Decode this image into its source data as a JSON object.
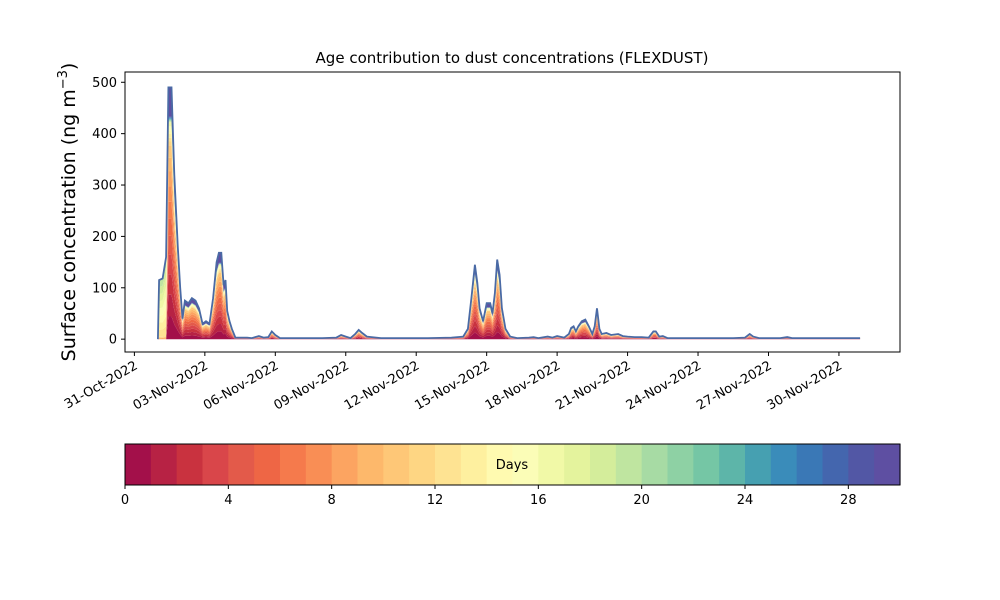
{
  "chart_data": {
    "type": "area",
    "title": "Age contribution to dust concentrations (FLEXDUST)",
    "ylabel_main": "Surface concentration (ng m",
    "ylabel_sup": "−3",
    "ylabel_close": ")",
    "xlabel": "",
    "x_start_label": "31-Oct-2022",
    "xlim_days": [
      -0.4,
      32.6
    ],
    "ylim": [
      -25,
      520
    ],
    "y_ticks": [
      0,
      100,
      200,
      300,
      400,
      500
    ],
    "x_ticks": [
      {
        "day": 0,
        "label": "31-Oct-2022"
      },
      {
        "day": 3,
        "label": "03-Nov-2022"
      },
      {
        "day": 6,
        "label": "06-Nov-2022"
      },
      {
        "day": 9,
        "label": "09-Nov-2022"
      },
      {
        "day": 12,
        "label": "12-Nov-2022"
      },
      {
        "day": 15,
        "label": "15-Nov-2022"
      },
      {
        "day": 18,
        "label": "18-Nov-2022"
      },
      {
        "day": 21,
        "label": "21-Nov-2022"
      },
      {
        "day": 24,
        "label": "24-Nov-2022"
      },
      {
        "day": 27,
        "label": "27-Nov-2022"
      },
      {
        "day": 30,
        "label": "30-Nov-2022"
      }
    ],
    "total_line_color": "#4a6aa5",
    "series_total": [
      [
        1.0,
        0
      ],
      [
        1.05,
        115
      ],
      [
        1.2,
        118
      ],
      [
        1.35,
        160
      ],
      [
        1.45,
        490
      ],
      [
        1.58,
        490
      ],
      [
        1.7,
        320
      ],
      [
        1.85,
        180
      ],
      [
        1.95,
        100
      ],
      [
        2.05,
        40
      ],
      [
        2.15,
        75
      ],
      [
        2.3,
        70
      ],
      [
        2.45,
        80
      ],
      [
        2.6,
        75
      ],
      [
        2.75,
        60
      ],
      [
        2.9,
        30
      ],
      [
        3.05,
        35
      ],
      [
        3.2,
        30
      ],
      [
        3.35,
        80
      ],
      [
        3.5,
        150
      ],
      [
        3.6,
        168
      ],
      [
        3.7,
        168
      ],
      [
        3.8,
        105
      ],
      [
        3.88,
        115
      ],
      [
        3.95,
        55
      ],
      [
        4.05,
        35
      ],
      [
        4.15,
        20
      ],
      [
        4.3,
        3
      ],
      [
        4.8,
        3
      ],
      [
        5.0,
        2
      ],
      [
        5.3,
        6
      ],
      [
        5.5,
        3
      ],
      [
        5.7,
        4
      ],
      [
        5.85,
        15
      ],
      [
        6.0,
        8
      ],
      [
        6.2,
        2
      ],
      [
        7.0,
        2
      ],
      [
        7.5,
        2
      ],
      [
        8.0,
        2
      ],
      [
        8.6,
        3
      ],
      [
        8.8,
        8
      ],
      [
        9.0,
        5
      ],
      [
        9.2,
        2
      ],
      [
        9.4,
        10
      ],
      [
        9.55,
        18
      ],
      [
        9.7,
        12
      ],
      [
        9.9,
        5
      ],
      [
        10.5,
        2
      ],
      [
        11.5,
        2
      ],
      [
        12.5,
        2
      ],
      [
        13.5,
        3
      ],
      [
        14.0,
        5
      ],
      [
        14.2,
        20
      ],
      [
        14.35,
        80
      ],
      [
        14.5,
        145
      ],
      [
        14.6,
        110
      ],
      [
        14.7,
        60
      ],
      [
        14.85,
        35
      ],
      [
        15.0,
        70
      ],
      [
        15.15,
        70
      ],
      [
        15.25,
        50
      ],
      [
        15.35,
        90
      ],
      [
        15.45,
        155
      ],
      [
        15.55,
        125
      ],
      [
        15.65,
        60
      ],
      [
        15.8,
        20
      ],
      [
        16.0,
        5
      ],
      [
        16.3,
        2
      ],
      [
        16.8,
        3
      ],
      [
        17.0,
        4
      ],
      [
        17.2,
        2
      ],
      [
        17.6,
        5
      ],
      [
        17.8,
        3
      ],
      [
        18.0,
        6
      ],
      [
        18.3,
        3
      ],
      [
        18.5,
        10
      ],
      [
        18.6,
        22
      ],
      [
        18.7,
        25
      ],
      [
        18.8,
        15
      ],
      [
        18.9,
        25
      ],
      [
        19.05,
        35
      ],
      [
        19.2,
        38
      ],
      [
        19.35,
        25
      ],
      [
        19.5,
        10
      ],
      [
        19.6,
        25
      ],
      [
        19.7,
        60
      ],
      [
        19.8,
        20
      ],
      [
        19.9,
        10
      ],
      [
        20.1,
        12
      ],
      [
        20.3,
        8
      ],
      [
        20.6,
        10
      ],
      [
        20.8,
        6
      ],
      [
        21.0,
        5
      ],
      [
        21.3,
        4
      ],
      [
        21.6,
        4
      ],
      [
        21.9,
        3
      ],
      [
        22.1,
        15
      ],
      [
        22.2,
        15
      ],
      [
        22.35,
        5
      ],
      [
        22.5,
        6
      ],
      [
        22.7,
        2
      ],
      [
        23.5,
        2
      ],
      [
        24.5,
        2
      ],
      [
        25.5,
        2
      ],
      [
        26.0,
        3
      ],
      [
        26.2,
        10
      ],
      [
        26.35,
        5
      ],
      [
        26.6,
        2
      ],
      [
        27.2,
        2
      ],
      [
        27.5,
        2
      ],
      [
        27.8,
        4
      ],
      [
        28.0,
        2
      ],
      [
        29.0,
        2
      ],
      [
        30.0,
        2
      ],
      [
        30.5,
        2
      ],
      [
        30.9,
        2
      ]
    ],
    "peak_age_profile": "age distribution is dominated by 0–10 day dust; the Nov-1 onset carries older (12–20 day) dust",
    "colorbar": {
      "label": "Days",
      "range": [
        0,
        30
      ],
      "n_bins": 30,
      "ticks": [
        0,
        4,
        8,
        12,
        16,
        20,
        24,
        28
      ],
      "colormap": "Spectral",
      "colors": [
        "#a3104a",
        "#b72244",
        "#c9323f",
        "#d9464a",
        "#e35a4a",
        "#ee6645",
        "#f57a4c",
        "#f98e55",
        "#fca461",
        "#fdb86b",
        "#fec777",
        "#fed683",
        "#fee392",
        "#fef09f",
        "#fffab0",
        "#fbfdb7",
        "#f1f9a7",
        "#e4f39d",
        "#d4ed9b",
        "#bfe5a0",
        "#a7dba4",
        "#8ed1a4",
        "#75c6a5",
        "#5db5a9",
        "#46a0b1",
        "#3a8cba",
        "#3a78b6",
        "#4466ae",
        "#5257a5",
        "#5e4fa2"
      ]
    }
  }
}
